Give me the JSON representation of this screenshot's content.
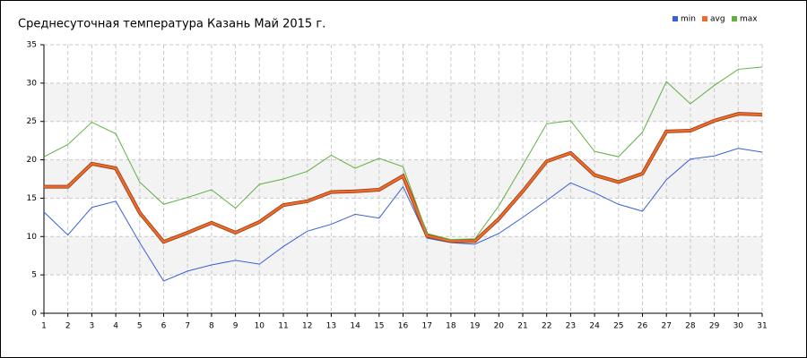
{
  "chart_data": {
    "type": "line",
    "title": "Среднесуточная температура Казань  Май 2015 г.",
    "x": [
      1,
      2,
      3,
      4,
      5,
      6,
      7,
      8,
      9,
      10,
      11,
      12,
      13,
      14,
      15,
      16,
      17,
      18,
      19,
      20,
      21,
      22,
      23,
      24,
      25,
      26,
      27,
      28,
      29,
      30,
      31
    ],
    "xlim": [
      1,
      31
    ],
    "ylim": [
      0,
      35
    ],
    "yticks": [
      0,
      5,
      10,
      15,
      20,
      25,
      30,
      35
    ],
    "grid": true,
    "legend": "top-right",
    "series": [
      {
        "name": "min",
        "color": "#3a5fd6",
        "values": [
          13.2,
          10.2,
          13.8,
          14.6,
          9.2,
          4.2,
          5.5,
          6.3,
          6.9,
          6.4,
          8.7,
          10.7,
          11.6,
          12.9,
          12.4,
          16.5,
          9.8,
          9.2,
          9.0,
          10.4,
          12.5,
          14.7,
          17.0,
          15.7,
          14.2,
          13.3,
          17.4,
          20.1,
          20.5,
          21.5,
          21.0
        ]
      },
      {
        "name": "avg",
        "color": "#f06a2a",
        "values": [
          16.5,
          16.5,
          19.5,
          18.9,
          13.1,
          9.3,
          10.5,
          11.8,
          10.5,
          11.9,
          14.1,
          14.6,
          15.8,
          15.9,
          16.1,
          17.9,
          10.1,
          9.4,
          9.4,
          12.3,
          15.9,
          19.8,
          20.9,
          18.0,
          17.1,
          18.2,
          23.7,
          23.8,
          25.1,
          26.0,
          25.9
        ]
      },
      {
        "name": "max",
        "color": "#5fb041",
        "values": [
          20.4,
          22.0,
          24.9,
          23.4,
          17.1,
          14.2,
          15.1,
          16.1,
          13.7,
          16.8,
          17.5,
          18.5,
          20.6,
          18.9,
          20.2,
          19.1,
          10.4,
          9.6,
          9.7,
          14.0,
          19.3,
          24.7,
          25.1,
          21.1,
          20.4,
          23.6,
          30.2,
          27.3,
          29.7,
          31.8,
          32.1
        ]
      }
    ]
  }
}
